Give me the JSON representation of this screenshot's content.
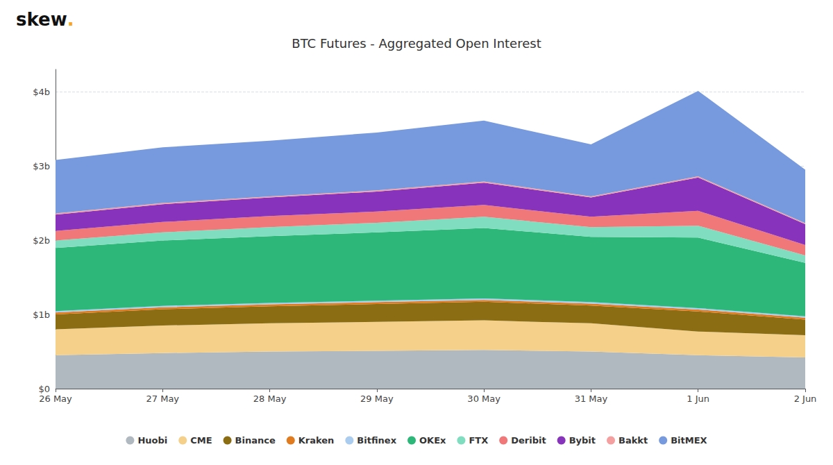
{
  "chart_data": {
    "type": "area",
    "stacked": true,
    "title": "BTC Futures - Aggregated Open Interest",
    "annotations": [
      {
        "text": "skew",
        "color": "#111111"
      },
      {
        "text": ".",
        "color": "#f5a623"
      }
    ],
    "categories": [
      "26 May",
      "27 May",
      "28 May",
      "29 May",
      "30 May",
      "31 May",
      "1 Jun",
      "2 Jun"
    ],
    "series": [
      {
        "name": "Huobi",
        "color": "#b0b8c0",
        "values": [
          450000000.0,
          480000000.0,
          500000000.0,
          510000000.0,
          520000000.0,
          500000000.0,
          450000000.0,
          420000000.0
        ]
      },
      {
        "name": "CME",
        "color": "#f5d08a",
        "values": [
          350000000.0,
          370000000.0,
          380000000.0,
          390000000.0,
          400000000.0,
          380000000.0,
          320000000.0,
          300000000.0
        ]
      },
      {
        "name": "Binance",
        "color": "#8B6e14",
        "values": [
          200000000.0,
          220000000.0,
          230000000.0,
          240000000.0,
          250000000.0,
          240000000.0,
          270000000.0,
          210000000.0
        ]
      },
      {
        "name": "Kraken",
        "color": "#e07b20",
        "values": [
          25000000.0,
          25000000.0,
          25000000.0,
          25000000.0,
          25000000.0,
          25000000.0,
          25000000.0,
          25000000.0
        ]
      },
      {
        "name": "Bitfinex",
        "color": "#aaccee",
        "values": [
          20000000.0,
          20000000.0,
          20000000.0,
          20000000.0,
          20000000.0,
          20000000.0,
          20000000.0,
          20000000.0
        ]
      },
      {
        "name": "OKEx",
        "color": "#2db87a",
        "values": [
          850000000.0,
          880000000.0,
          900000000.0,
          920000000.0,
          950000000.0,
          880000000.0,
          950000000.0,
          720000000.0
        ]
      },
      {
        "name": "FTX",
        "color": "#80ddc0",
        "values": [
          100000000.0,
          110000000.0,
          120000000.0,
          130000000.0,
          150000000.0,
          130000000.0,
          160000000.0,
          100000000.0
        ]
      },
      {
        "name": "Deribit",
        "color": "#f07878",
        "values": [
          130000000.0,
          140000000.0,
          150000000.0,
          150000000.0,
          160000000.0,
          140000000.0,
          200000000.0,
          140000000.0
        ]
      },
      {
        "name": "Bybit",
        "color": "#8833bb",
        "values": [
          220000000.0,
          240000000.0,
          250000000.0,
          270000000.0,
          300000000.0,
          260000000.0,
          450000000.0,
          280000000.0
        ]
      },
      {
        "name": "Bakkt",
        "color": "#f5a0a0",
        "values": [
          15000000.0,
          15000000.0,
          15000000.0,
          15000000.0,
          15000000.0,
          15000000.0,
          15000000.0,
          15000000.0
        ]
      },
      {
        "name": "BitMEX",
        "color": "#7799dd",
        "values": [
          720000000.0,
          750000000.0,
          750000000.0,
          780000000.0,
          820000000.0,
          700000000.0,
          1150000000.0,
          720000000.0
        ]
      }
    ],
    "ylim": [
      0,
      4300000000.0
    ],
    "yticks": [
      {
        "value": 0,
        "label": "$0"
      },
      {
        "value": 1000000000.0,
        "label": "$1b"
      },
      {
        "value": 2000000000.0,
        "label": "$2b"
      },
      {
        "value": 3000000000.0,
        "label": "$3b"
      },
      {
        "value": 4000000000.0,
        "label": "$4b"
      }
    ],
    "grid": true,
    "legend": "bottom"
  }
}
